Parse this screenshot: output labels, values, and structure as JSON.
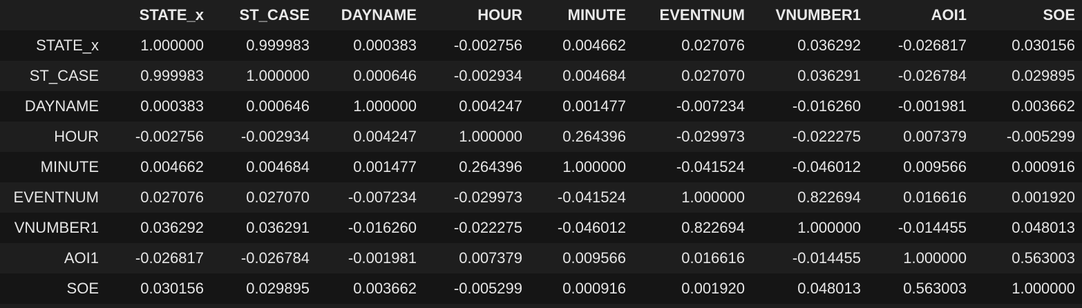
{
  "table": {
    "index_header": "",
    "columns": [
      "STATE_x",
      "ST_CASE",
      "DAYNAME",
      "HOUR",
      "MINUTE",
      "EVENTNUM",
      "VNUMBER1",
      "AOI1",
      "SOE"
    ],
    "rows": [
      {
        "label": "STATE_x",
        "values": [
          "1.000000",
          "0.999983",
          "0.000383",
          "-0.002756",
          "0.004662",
          "0.027076",
          "0.036292",
          "-0.026817",
          "0.030156"
        ]
      },
      {
        "label": "ST_CASE",
        "values": [
          "0.999983",
          "1.000000",
          "0.000646",
          "-0.002934",
          "0.004684",
          "0.027070",
          "0.036291",
          "-0.026784",
          "0.029895"
        ]
      },
      {
        "label": "DAYNAME",
        "values": [
          "0.000383",
          "0.000646",
          "1.000000",
          "0.004247",
          "0.001477",
          "-0.007234",
          "-0.016260",
          "-0.001981",
          "0.003662"
        ]
      },
      {
        "label": "HOUR",
        "values": [
          "-0.002756",
          "-0.002934",
          "0.004247",
          "1.000000",
          "0.264396",
          "-0.029973",
          "-0.022275",
          "0.007379",
          "-0.005299"
        ]
      },
      {
        "label": "MINUTE",
        "values": [
          "0.004662",
          "0.004684",
          "0.001477",
          "0.264396",
          "1.000000",
          "-0.041524",
          "-0.046012",
          "0.009566",
          "0.000916"
        ]
      },
      {
        "label": "EVENTNUM",
        "values": [
          "0.027076",
          "0.027070",
          "-0.007234",
          "-0.029973",
          "-0.041524",
          "1.000000",
          "0.822694",
          "0.016616",
          "0.001920"
        ]
      },
      {
        "label": "VNUMBER1",
        "values": [
          "0.036292",
          "0.036291",
          "-0.016260",
          "-0.022275",
          "-0.046012",
          "0.822694",
          "1.000000",
          "-0.014455",
          "0.048013"
        ]
      },
      {
        "label": "AOI1",
        "values": [
          "-0.026817",
          "-0.026784",
          "-0.001981",
          "0.007379",
          "0.009566",
          "0.016616",
          "-0.014455",
          "1.000000",
          "0.563003"
        ]
      },
      {
        "label": "SOE",
        "values": [
          "0.030156",
          "0.029895",
          "0.003662",
          "-0.005299",
          "0.000916",
          "0.001920",
          "0.048013",
          "0.563003",
          "1.000000"
        ]
      }
    ]
  }
}
